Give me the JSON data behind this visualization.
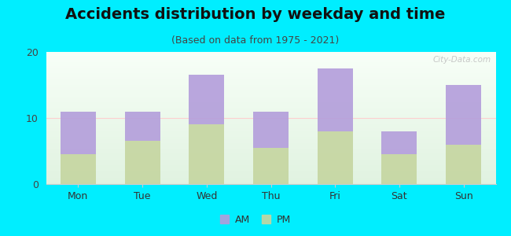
{
  "title": "Accidents distribution by weekday and time",
  "subtitle": "(Based on data from 1975 - 2021)",
  "categories": [
    "Mon",
    "Tue",
    "Wed",
    "Thu",
    "Fri",
    "Sat",
    "Sun"
  ],
  "pm_values": [
    4.5,
    6.5,
    9.0,
    5.5,
    8.0,
    4.5,
    6.0
  ],
  "am_values": [
    6.5,
    4.5,
    7.5,
    5.5,
    9.5,
    3.5,
    9.0
  ],
  "am_color": "#b39ddb",
  "pm_color": "#c5d5a0",
  "background_color": "#00eeff",
  "ylim": [
    0,
    20
  ],
  "yticks": [
    0,
    10,
    20
  ],
  "bar_width": 0.55,
  "watermark": "City-Data.com",
  "title_fontsize": 14,
  "subtitle_fontsize": 9,
  "tick_fontsize": 9,
  "legend_fontsize": 9
}
